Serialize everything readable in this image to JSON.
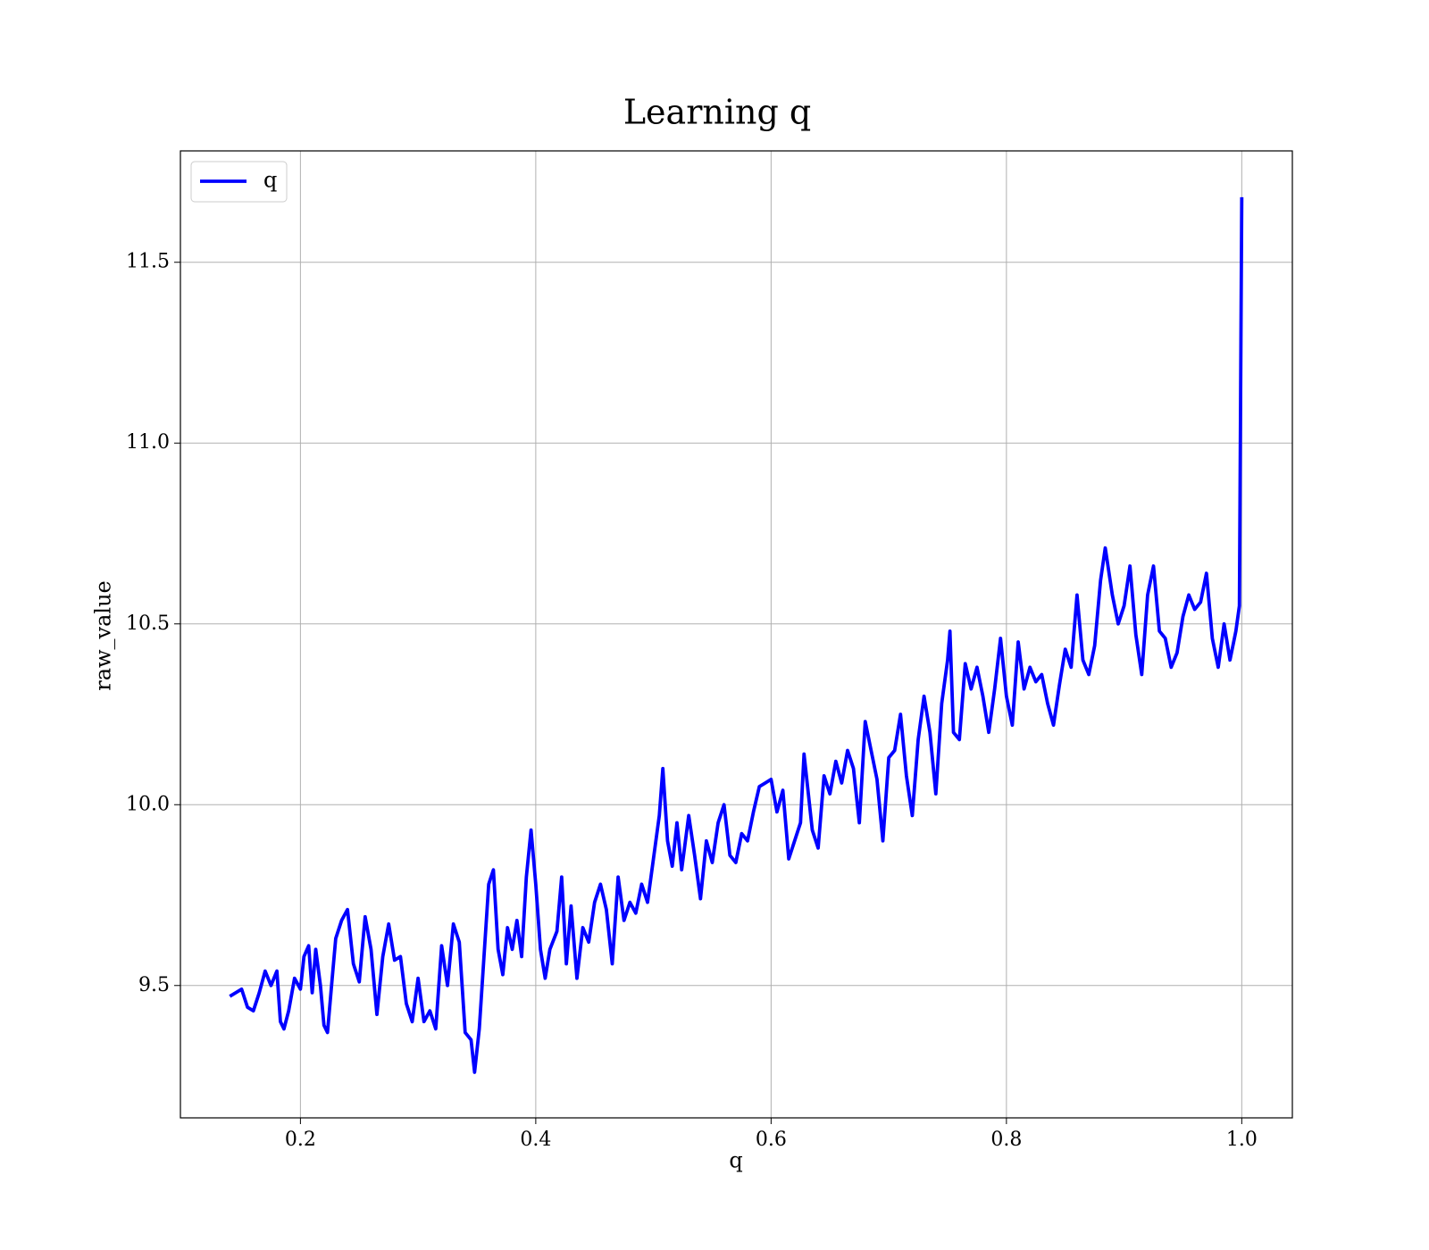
{
  "chart_data": {
    "type": "line",
    "title": "Learning q",
    "x_label": "q",
    "y_label": "raw_value",
    "grid": true,
    "legend": "upper left",
    "xlim": [
      0.098,
      1.043
    ],
    "ylim": [
      9.134,
      11.808
    ],
    "xticks": [
      0.2,
      0.4,
      0.6,
      0.8,
      {
        "value": 1,
        "label": "1.0"
      }
    ],
    "yticks": [
      9.5,
      {
        "value": 10,
        "label": "10.0"
      },
      10.5,
      {
        "value": 11,
        "label": "11.0"
      },
      11.5
    ],
    "x": [
      0.14,
      0.15,
      0.155,
      0.16,
      0.165,
      0.17,
      0.175,
      0.18,
      0.183,
      0.186,
      0.19,
      0.195,
      0.2,
      0.203,
      0.207,
      0.21,
      0.213,
      0.217,
      0.22,
      0.223,
      0.227,
      0.23,
      0.235,
      0.24,
      0.245,
      0.25,
      0.255,
      0.26,
      0.265,
      0.27,
      0.275,
      0.28,
      0.285,
      0.29,
      0.295,
      0.3,
      0.305,
      0.31,
      0.315,
      0.32,
      0.325,
      0.33,
      0.335,
      0.34,
      0.345,
      0.348,
      0.352,
      0.356,
      0.36,
      0.364,
      0.368,
      0.372,
      0.376,
      0.38,
      0.384,
      0.388,
      0.392,
      0.396,
      0.4,
      0.404,
      0.408,
      0.412,
      0.418,
      0.422,
      0.426,
      0.43,
      0.435,
      0.44,
      0.445,
      0.45,
      0.455,
      0.46,
      0.465,
      0.47,
      0.475,
      0.48,
      0.485,
      0.49,
      0.495,
      0.5,
      0.505,
      0.508,
      0.512,
      0.516,
      0.52,
      0.524,
      0.53,
      0.535,
      0.54,
      0.545,
      0.55,
      0.555,
      0.56,
      0.565,
      0.57,
      0.575,
      0.58,
      0.585,
      0.59,
      0.595,
      0.6,
      0.605,
      0.61,
      0.615,
      0.62,
      0.625,
      0.628,
      0.635,
      0.64,
      0.645,
      0.65,
      0.655,
      0.66,
      0.665,
      0.67,
      0.675,
      0.68,
      0.685,
      0.69,
      0.695,
      0.7,
      0.705,
      0.71,
      0.715,
      0.72,
      0.725,
      0.73,
      0.735,
      0.74,
      0.745,
      0.75,
      0.752,
      0.755,
      0.76,
      0.765,
      0.77,
      0.775,
      0.78,
      0.785,
      0.79,
      0.795,
      0.8,
      0.805,
      0.81,
      0.815,
      0.82,
      0.825,
      0.83,
      0.835,
      0.84,
      0.845,
      0.85,
      0.855,
      0.86,
      0.865,
      0.87,
      0.875,
      0.88,
      0.884,
      0.89,
      0.895,
      0.9,
      0.905,
      0.91,
      0.915,
      0.92,
      0.925,
      0.93,
      0.935,
      0.94,
      0.945,
      0.95,
      0.955,
      0.96,
      0.965,
      0.97,
      0.975,
      0.98,
      0.985,
      0.99,
      0.995,
      0.998,
      1.0
    ],
    "series": [
      {
        "name": "q",
        "color": "#0000ff",
        "values": [
          9.47,
          9.49,
          9.44,
          9.43,
          9.48,
          9.54,
          9.5,
          9.54,
          9.4,
          9.38,
          9.43,
          9.52,
          9.49,
          9.58,
          9.61,
          9.48,
          9.6,
          9.5,
          9.39,
          9.37,
          9.52,
          9.63,
          9.68,
          9.71,
          9.56,
          9.51,
          9.69,
          9.6,
          9.42,
          9.58,
          9.67,
          9.57,
          9.58,
          9.45,
          9.4,
          9.52,
          9.4,
          9.43,
          9.38,
          9.61,
          9.5,
          9.67,
          9.62,
          9.37,
          9.35,
          9.26,
          9.38,
          9.58,
          9.78,
          9.82,
          9.6,
          9.53,
          9.66,
          9.6,
          9.68,
          9.58,
          9.8,
          9.93,
          9.78,
          9.6,
          9.52,
          9.6,
          9.65,
          9.8,
          9.56,
          9.72,
          9.52,
          9.66,
          9.62,
          9.73,
          9.78,
          9.71,
          9.56,
          9.8,
          9.68,
          9.73,
          9.7,
          9.78,
          9.73,
          9.85,
          9.97,
          10.1,
          9.9,
          9.83,
          9.95,
          9.82,
          9.97,
          9.86,
          9.74,
          9.9,
          9.84,
          9.95,
          10.0,
          9.86,
          9.84,
          9.92,
          9.9,
          9.98,
          10.05,
          10.06,
          10.07,
          9.98,
          10.04,
          9.85,
          9.9,
          9.95,
          10.14,
          9.93,
          9.88,
          10.08,
          10.03,
          10.12,
          10.06,
          10.15,
          10.1,
          9.95,
          10.23,
          10.15,
          10.07,
          9.9,
          10.13,
          10.15,
          10.25,
          10.08,
          9.97,
          10.18,
          10.3,
          10.2,
          10.03,
          10.28,
          10.4,
          10.48,
          10.2,
          10.18,
          10.39,
          10.32,
          10.38,
          10.3,
          10.2,
          10.32,
          10.46,
          10.3,
          10.22,
          10.45,
          10.32,
          10.38,
          10.34,
          10.36,
          10.28,
          10.22,
          10.33,
          10.43,
          10.38,
          10.58,
          10.4,
          10.36,
          10.44,
          10.62,
          10.71,
          10.58,
          10.5,
          10.55,
          10.66,
          10.47,
          10.36,
          10.58,
          10.66,
          10.48,
          10.46,
          10.38,
          10.42,
          10.52,
          10.58,
          10.54,
          10.56,
          10.64,
          10.46,
          10.38,
          10.5,
          10.4,
          10.48,
          10.55,
          11.68
        ]
      }
    ]
  }
}
